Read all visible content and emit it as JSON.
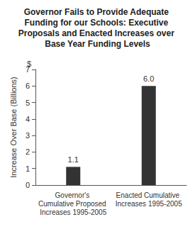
{
  "chart_data": {
    "type": "bar",
    "title": "Governor Fails to Provide Adequate Funding for our Schools: Executive Proposals and Enacted Increases over Base Year Funding Levels",
    "ylabel": "Increase Over Base (Billions)",
    "annotations": [
      "$"
    ],
    "categories": [
      "Governor's Cumulative Proposed Increases 1995-2005",
      "Enacted Cumulative Increases 1995-2005"
    ],
    "values": [
      1.1,
      6.0
    ],
    "value_labels": [
      "1.1",
      "6.0"
    ],
    "data_labels": true,
    "color": "#333333",
    "ylim": [
      0,
      7
    ],
    "yticks": [
      0,
      1,
      2,
      3,
      4,
      5,
      6,
      7
    ],
    "grid": false
  }
}
